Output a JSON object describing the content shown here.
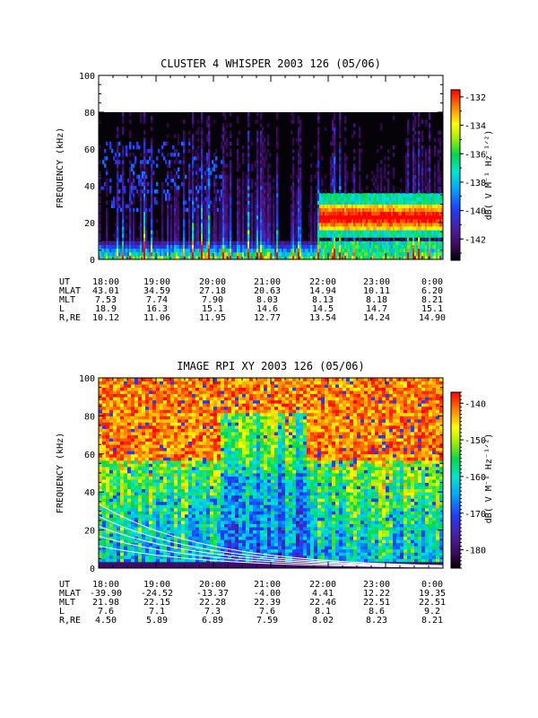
{
  "chart_data": [
    {
      "type": "heatmap",
      "title": "CLUSTER 4 WHISPER 2003 126 (05/06)",
      "ylabel": "FREQUENCY (kHz)",
      "ylim": [
        0,
        100
      ],
      "yticks": [
        "0",
        "20",
        "40",
        "60",
        "80",
        "100"
      ],
      "colorbar": {
        "label": "dB( V M⁻¹ Hz⁻¹ᐟ²)",
        "range": [
          -143.5,
          -131.5
        ],
        "ticks": [
          "-132",
          "-134",
          "-136",
          "-138",
          "-140",
          "-142"
        ],
        "tick_values": [
          -132,
          -134,
          -136,
          -138,
          -140,
          -142
        ]
      },
      "data_max_frequency_khz": 80,
      "description_features": {
        "background_value_db": -143,
        "band_start_time": "21:50",
        "band_center_khz": 22,
        "band_level_db": -133
      },
      "ephemeris": {
        "rows": [
          {
            "label": "UT",
            "values": [
              "18:00",
              "19:00",
              "20:00",
              "21:00",
              "22:00",
              "23:00",
              "0:00"
            ]
          },
          {
            "label": "MLAT",
            "values": [
              "43.01",
              "34.59",
              "27.18",
              "20.63",
              "14.94",
              "10.11",
              "6.20"
            ]
          },
          {
            "label": "MLT",
            "values": [
              "7.53",
              "7.74",
              "7.90",
              "8.03",
              "8.13",
              "8.18",
              "8.21"
            ]
          },
          {
            "label": "L",
            "values": [
              "18.9",
              "16.3",
              "15.1",
              "14.6",
              "14.5",
              "14.7",
              "15.1"
            ]
          },
          {
            "label": "R,RE",
            "values": [
              "10.12",
              "11.06",
              "11.95",
              "12.77",
              "13.54",
              "14.24",
              "14.90"
            ]
          }
        ]
      }
    },
    {
      "type": "heatmap",
      "title": "IMAGE RPI XY 2003 126 (05/06)",
      "ylabel": "FREQUENCY (kHz)",
      "ylim": [
        0,
        100
      ],
      "yticks": [
        "0",
        "20",
        "40",
        "60",
        "80",
        "100"
      ],
      "colorbar": {
        "label": "dB( V M⁻¹ Hz⁻¹ᐟ²)",
        "range": [
          -185,
          -137
        ],
        "ticks": [
          "-140",
          "-150",
          "-160",
          "-170",
          "-180"
        ],
        "tick_values": [
          -140,
          -150,
          -160,
          -170,
          -180
        ]
      },
      "ephemeris": {
        "rows": [
          {
            "label": "UT",
            "values": [
              "18:00",
              "19:00",
              "20:00",
              "21:00",
              "22:00",
              "23:00",
              "0:00"
            ]
          },
          {
            "label": "MLAT",
            "values": [
              "-39.90",
              "-24.52",
              "-13.37",
              "-4.00",
              "4.41",
              "12.22",
              "19.35"
            ]
          },
          {
            "label": "MLT",
            "values": [
              "21.98",
              "22.15",
              "22.28",
              "22.39",
              "22.46",
              "22.51",
              "22.51"
            ]
          },
          {
            "label": "L",
            "values": [
              "7.6",
              "7.1",
              "7.3",
              "7.6",
              "8.1",
              "8.6",
              "9.2"
            ]
          },
          {
            "label": "R,RE",
            "values": [
              "4.50",
              "5.89",
              "6.89",
              "7.59",
              "8.02",
              "8.23",
              "8.21"
            ]
          }
        ]
      }
    }
  ]
}
